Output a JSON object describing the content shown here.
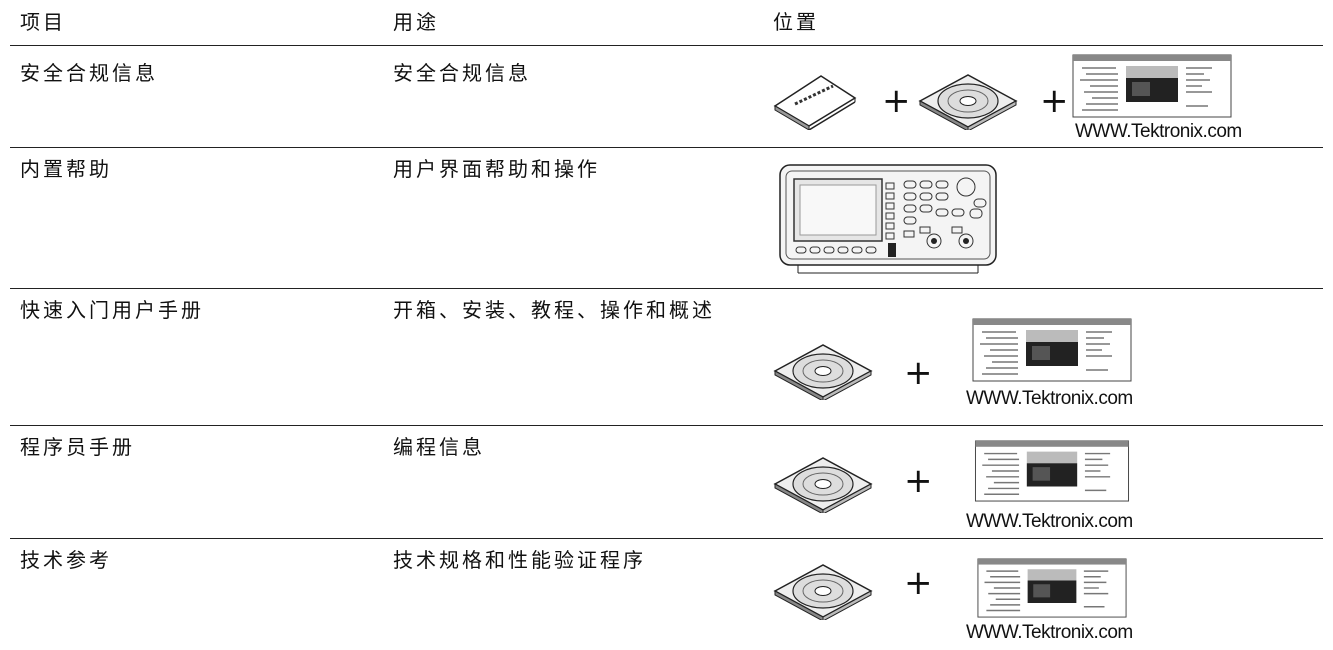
{
  "table": {
    "header": [
      "项目",
      "用途",
      "位置"
    ],
    "rows": [
      {
        "item": "安全合规信息",
        "purpose": "安全合规信息",
        "location": {
          "plus": [
            "+",
            "+"
          ],
          "url": "WWW.Tektronix.com"
        }
      },
      {
        "item": "内置帮助",
        "purpose": "用户界面帮助和操作"
      },
      {
        "item": "快速入门用户手册",
        "purpose": "开箱、安装、教程、操作和概述",
        "location": {
          "plus": [
            "+"
          ],
          "url": "WWW.Tektronix.com"
        }
      },
      {
        "item": "程序员手册",
        "purpose": "编程信息",
        "location": {
          "plus": [
            "+"
          ],
          "url": "WWW.Tektronix.com"
        }
      },
      {
        "item": "技术参考",
        "purpose": "技术规格和性能验证程序",
        "location": {
          "plus": [
            "+"
          ],
          "url": "WWW.Tektronix.com"
        }
      }
    ]
  }
}
